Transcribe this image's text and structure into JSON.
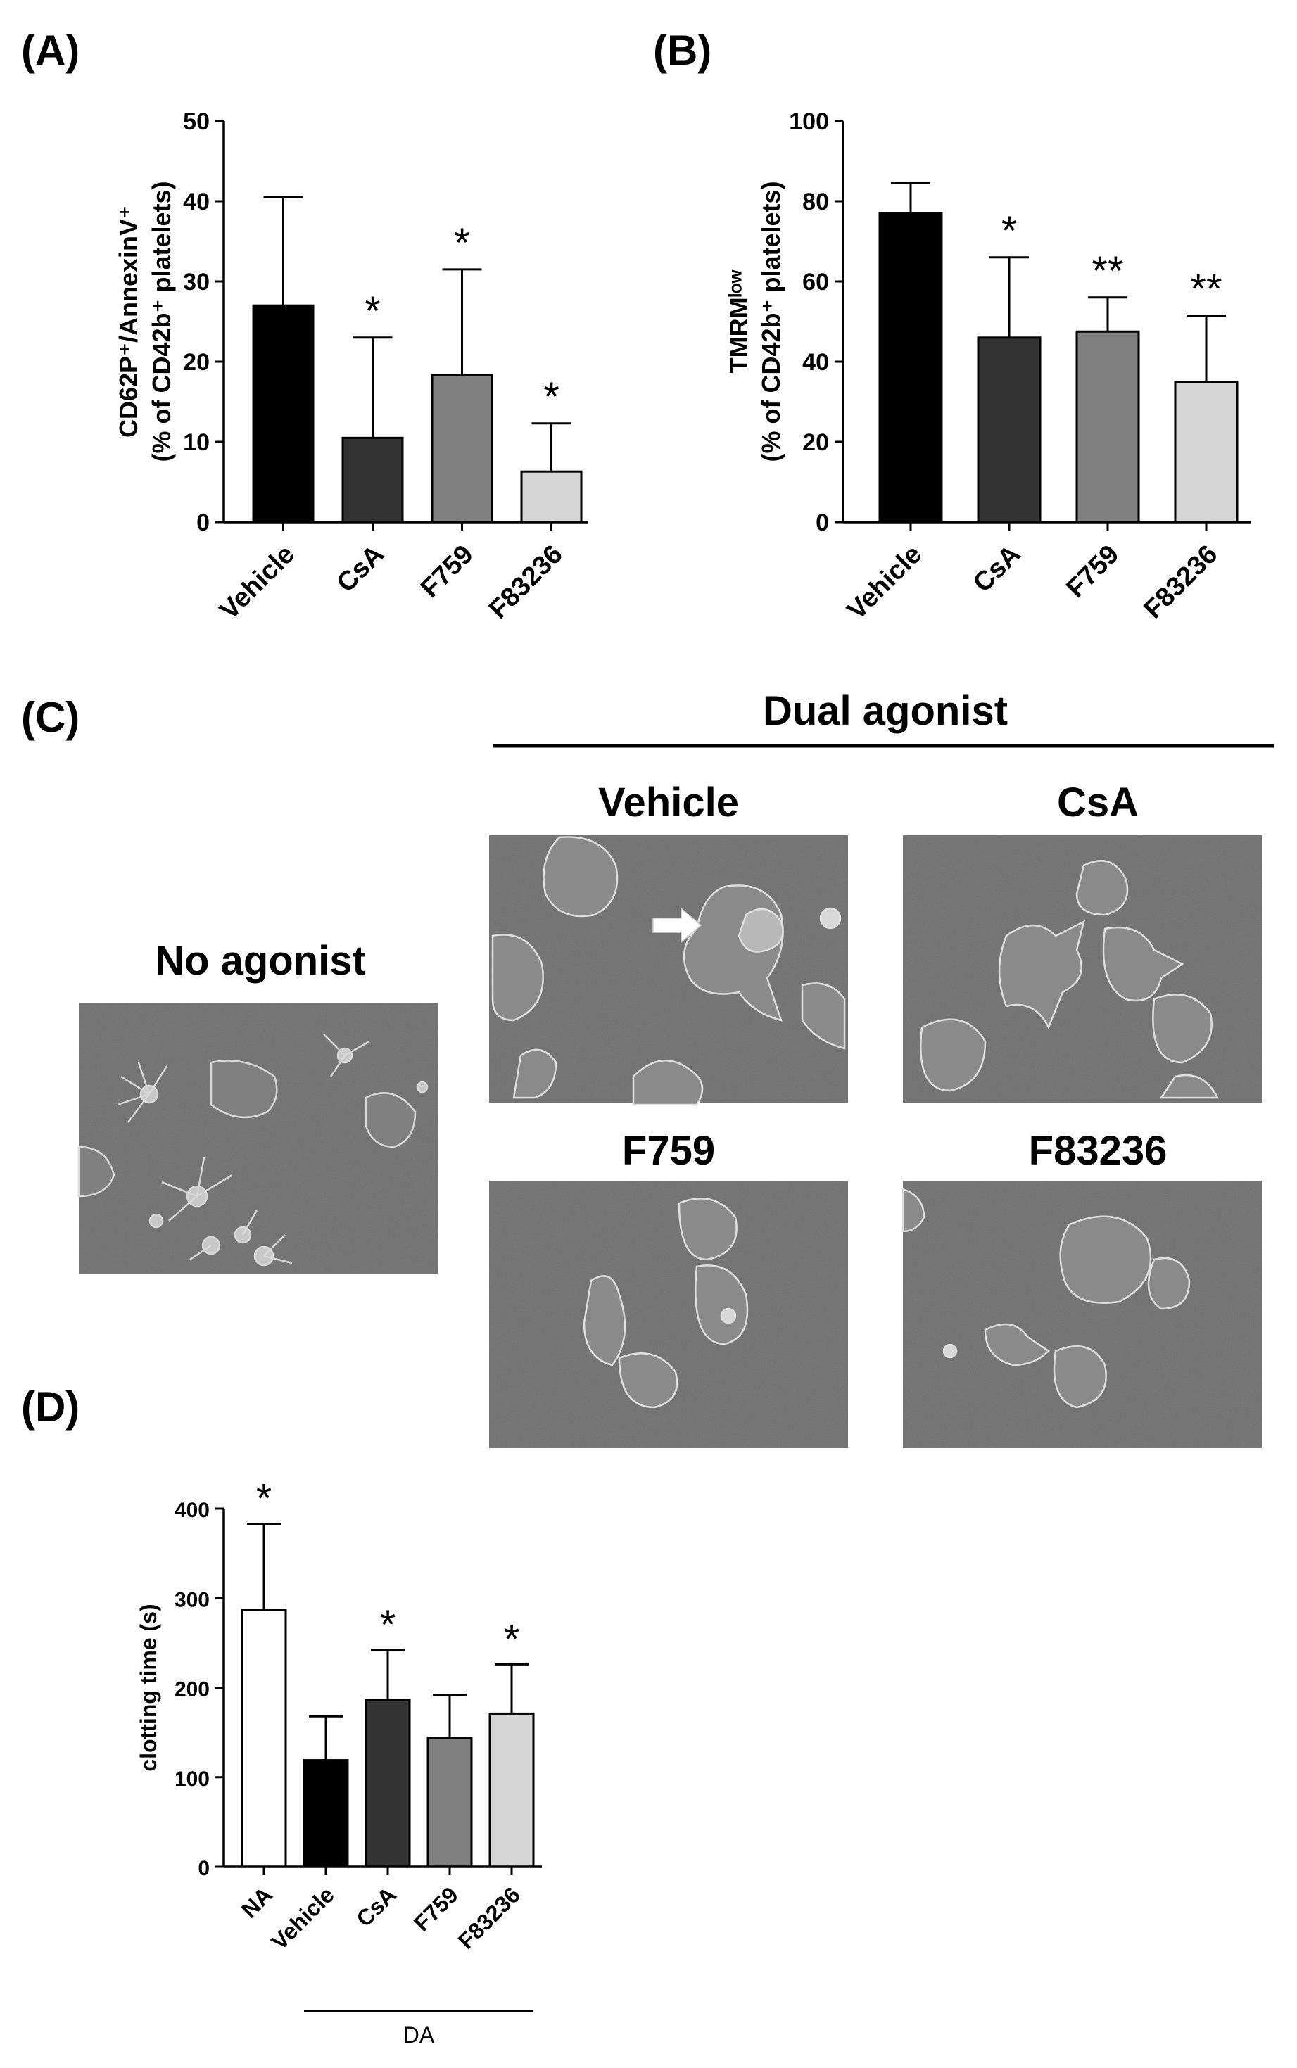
{
  "panels": {
    "a": "(A)",
    "b": "(B)",
    "c": "(C)",
    "d": "(D)"
  },
  "micrographs": {
    "dual_agonist": "Dual agonist",
    "no_agonist": "No agonist",
    "vehicle": "Vehicle",
    "csa": "CsA",
    "f759": "F759",
    "f83236": "F83236"
  },
  "colors": {
    "black": "#000000",
    "dark_gray": "#333333",
    "mid_gray": "#808080",
    "light_gray": "#d6d6d6",
    "white": "#ffffff",
    "sem_bg": "#6e6e6e"
  },
  "chart_data": [
    {
      "type": "bar",
      "panel": "A",
      "categories": [
        "Vehicle",
        "CsA",
        "F759",
        "F83236"
      ],
      "values": [
        27,
        10.5,
        18.3,
        6.3
      ],
      "errors": [
        13.5,
        12.5,
        13.2,
        6
      ],
      "significance": [
        "",
        "*",
        "*",
        "*"
      ],
      "bar_colors": [
        "#000000",
        "#333333",
        "#808080",
        "#d6d6d6"
      ],
      "ylabel_line1": "CD62P⁺/AnnexinV⁺",
      "ylabel_line2": "(% of CD42b⁺ platelets)",
      "ylim": [
        0,
        50
      ],
      "yticks": [
        "0",
        "10",
        "20",
        "30",
        "40",
        "50"
      ]
    },
    {
      "type": "bar",
      "panel": "B",
      "categories": [
        "Vehicle",
        "CsA",
        "F759",
        "F83236"
      ],
      "values": [
        77,
        46,
        47.5,
        35
      ],
      "errors": [
        7.5,
        20,
        8.5,
        16.5
      ],
      "significance": [
        "",
        "*",
        "**",
        "**"
      ],
      "bar_colors": [
        "#000000",
        "#333333",
        "#808080",
        "#d6d6d6"
      ],
      "ylabel_line1": "TMRMˡᵒʷ",
      "ylabel_line2": "(% of CD42b⁺ platelets)",
      "ylim": [
        0,
        100
      ],
      "yticks": [
        "0",
        "20",
        "40",
        "60",
        "80",
        "100"
      ]
    },
    {
      "type": "bar",
      "panel": "D",
      "categories": [
        "NA",
        "Vehicle",
        "CsA",
        "F759",
        "F83236"
      ],
      "values": [
        287,
        119,
        186,
        144,
        171
      ],
      "errors": [
        96,
        49,
        56,
        48,
        55
      ],
      "significance": [
        "*",
        "",
        "*",
        "",
        "*"
      ],
      "bar_colors": [
        "#ffffff",
        "#000000",
        "#333333",
        "#808080",
        "#d6d6d6"
      ],
      "ylabel_line1": "clotting time (s)",
      "ylabel_line2": "",
      "ylim": [
        0,
        400
      ],
      "yticks": [
        "0",
        "100",
        "200",
        "300",
        "400"
      ],
      "group_label": "DA"
    }
  ]
}
